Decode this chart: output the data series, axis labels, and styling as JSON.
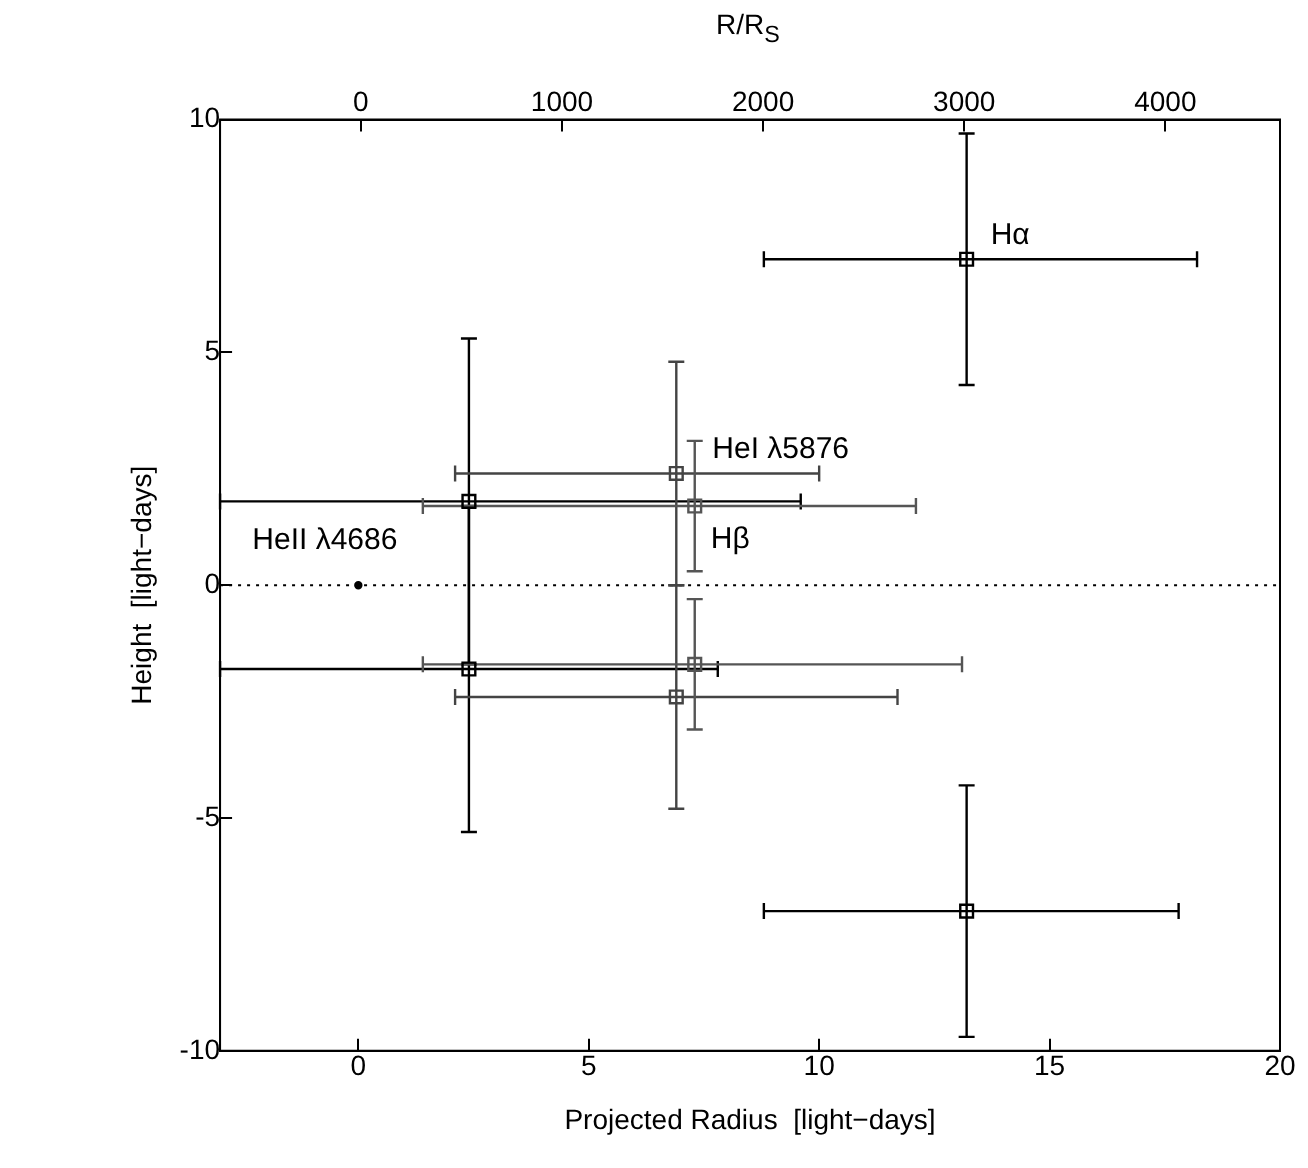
{
  "chart_data": {
    "type": "scatter",
    "xlabel": "Projected Radius  [light−days]",
    "ylabel": "Height  [light−days]",
    "x2label": "R/R$_{S}$",
    "xlim": [
      -3,
      20
    ],
    "xticks": [
      0,
      5,
      10,
      15,
      20
    ],
    "ylim": [
      -10,
      10
    ],
    "yticks": [
      -10,
      -5,
      0,
      5,
      10
    ],
    "x2lim": [
      -700,
      4570
    ],
    "x2ticks": [
      0,
      1000,
      2000,
      3000,
      4000
    ],
    "marker": "square",
    "grid": false,
    "legend": false,
    "ref_lines": [
      {
        "axis": "y",
        "value": 0,
        "line_style": "dotted",
        "color": "#000000"
      }
    ],
    "series": [
      {
        "name": "HeII λ4686",
        "color": "#000000",
        "marker": "circle",
        "x": [
          0
        ],
        "values": [
          0
        ]
      },
      {
        "color": "#000000",
        "x": [
          2.4,
          2.4
        ],
        "values": [
          1.8,
          -1.8
        ],
        "errors": [
          [
            -1.7,
            5.3
          ],
          [
            -5.3,
            1.7
          ]
        ],
        "xerrors": [
          [
            -3,
            9.6
          ],
          [
            -3,
            7.8
          ]
        ]
      },
      {
        "name": "HeI λ5876",
        "color": "#444444",
        "x": [
          6.9,
          6.9
        ],
        "values": [
          2.4,
          -2.4
        ],
        "errors": [
          [
            0,
            4.8
          ],
          [
            -4.8,
            0
          ]
        ],
        "xerrors": [
          [
            2.1,
            10
          ],
          [
            2.1,
            11.7
          ]
        ]
      },
      {
        "name": "Hβ",
        "color": "#555555",
        "x": [
          7.3,
          7.3
        ],
        "values": [
          1.7,
          -1.7
        ],
        "errors": [
          [
            0.3,
            3.1
          ],
          [
            -3.1,
            -0.3
          ]
        ],
        "xerrors": [
          [
            1.4,
            12.1
          ],
          [
            1.4,
            13.1
          ]
        ]
      },
      {
        "name": "Hα",
        "color": "#000000",
        "x": [
          13.2,
          13.2
        ],
        "values": [
          7,
          -7
        ],
        "errors": [
          [
            4.3,
            9.7
          ],
          [
            -9.7,
            -4.3
          ]
        ],
        "xerrors": [
          [
            8.8,
            18.2
          ],
          [
            8.8,
            17.8
          ]
        ]
      }
    ]
  }
}
